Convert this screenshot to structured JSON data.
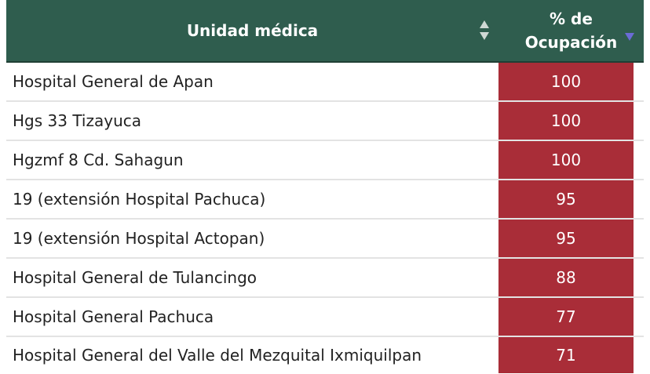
{
  "colors": {
    "header_bg": "#2f5d4e",
    "header_text": "#ffffff",
    "value_cell_bg": "#a92d38",
    "value_cell_text": "#ffffff",
    "row_border": "#e3e3e3",
    "sort_active": "#6b6bd6",
    "sort_inactive": "#cfd8d4"
  },
  "table": {
    "columns": [
      {
        "label": "Unidad médica",
        "sort": "none",
        "sort_icon": "sort-both-icon"
      },
      {
        "label_line1": "% de",
        "label_line2": "Ocupación",
        "sort": "descending",
        "sort_icon": "sort-desc-icon"
      }
    ],
    "rows": [
      {
        "unit": "Hospital General de Apan",
        "pct": "100"
      },
      {
        "unit": "Hgs 33 Tizayuca",
        "pct": "100"
      },
      {
        "unit": "Hgzmf 8 Cd. Sahagun",
        "pct": "100"
      },
      {
        "unit": "19 (extensión Hospital Pachuca)",
        "pct": "95"
      },
      {
        "unit": "19 (extensión Hospital Actopan)",
        "pct": "95"
      },
      {
        "unit": "Hospital General de Tulancingo",
        "pct": "88"
      },
      {
        "unit": "Hospital General Pachuca",
        "pct": "77"
      },
      {
        "unit": "Hospital General del Valle del Mezquital Ixmiquilpan",
        "pct": "71"
      }
    ]
  }
}
